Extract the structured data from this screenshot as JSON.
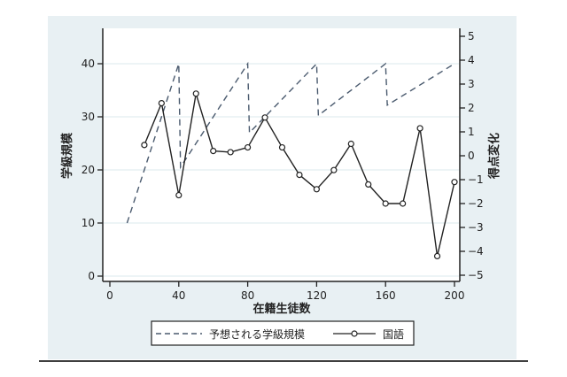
{
  "chart_data": {
    "type": "line",
    "title": "",
    "xlabel": "在籍生徒数",
    "ylabel_left": "学級規模",
    "ylabel_right": "得点変化",
    "x_ticks": [
      0,
      40,
      80,
      120,
      160,
      200
    ],
    "x_tick_labels": [
      "0",
      "40",
      "80",
      "120",
      "160",
      "200"
    ],
    "left_ticks": [
      0,
      10,
      20,
      30,
      40
    ],
    "left_tick_labels": [
      "0",
      "10",
      "20",
      "30",
      "40"
    ],
    "right_ticks": [
      5,
      4,
      3,
      2,
      1,
      0,
      -1,
      -2,
      -3,
      -4,
      -5
    ],
    "right_tick_labels": [
      "5",
      "4",
      "3",
      "2",
      "1",
      "0",
      "−1",
      "−2",
      "−3",
      "−4",
      "−5"
    ],
    "xlim": [
      -4,
      205
    ],
    "ylim_left": [
      -1,
      47
    ],
    "ylim_right": [
      -5.3,
      5.3
    ],
    "grid": true,
    "legend_position": "bottom",
    "series": [
      {
        "name": "予想される学級規模",
        "axis": "left",
        "style": "dashed",
        "color": "#4a5a6e",
        "x": [
          10,
          40,
          41,
          80,
          81,
          120,
          121,
          160,
          161,
          200
        ],
        "values": [
          10,
          40,
          20.5,
          40,
          27,
          40,
          30.25,
          40,
          32.2,
          40
        ]
      },
      {
        "name": "国語",
        "axis": "right",
        "style": "solid-markers",
        "color": "#222222",
        "x": [
          20,
          30,
          40,
          50,
          60,
          70,
          80,
          90,
          100,
          110,
          120,
          130,
          140,
          150,
          160,
          170,
          180,
          190,
          200
        ],
        "values": [
          0.45,
          2.2,
          -1.65,
          2.6,
          0.2,
          0.15,
          0.35,
          1.6,
          0.35,
          -0.8,
          -1.4,
          -0.6,
          0.5,
          -1.2,
          -2.0,
          -2.0,
          1.15,
          -4.2,
          -1.1
        ]
      }
    ]
  },
  "legend": {
    "items": [
      {
        "label": "予想される学級規模"
      },
      {
        "label": "国語"
      }
    ]
  }
}
